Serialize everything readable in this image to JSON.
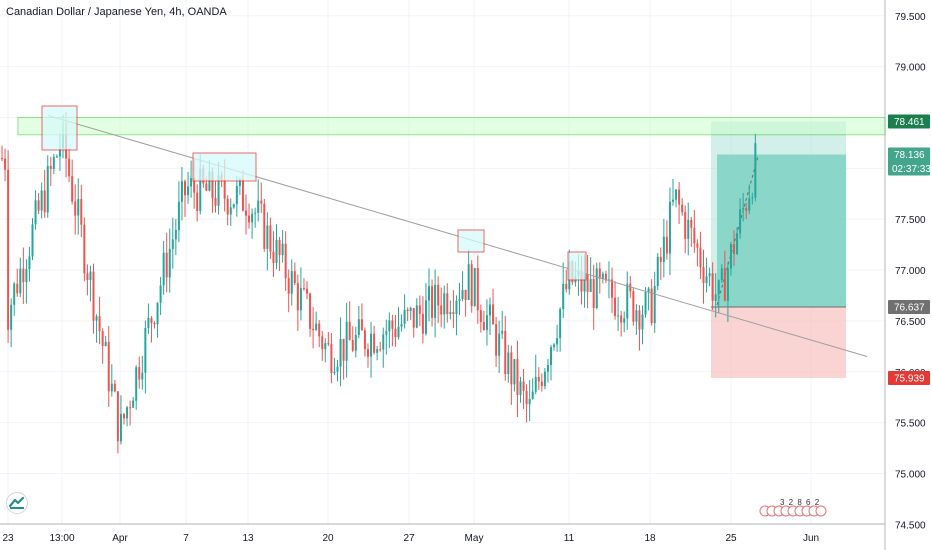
{
  "title": "Canadian Dollar / Japanese Yen, 4h, OANDA",
  "icons": {
    "logo": "tradingview-logo-icon"
  },
  "colors": {
    "background": "#ffffff",
    "grid": "#f0f3fa",
    "up": "#26a69a",
    "down": "#ef5350",
    "trendline": "#9e9e9e",
    "resistance_zone_fill": "#ccffcc",
    "resistance_zone_stroke": "#33cc33",
    "box_fill": "#d6fafa",
    "box_stroke": "#e53935",
    "profit_fill": "#7ed2c4",
    "loss_fill": "#f8c4c4",
    "resistance_label": "#1b7e4f",
    "price_label": "#43a58c",
    "entry_label": "#707070",
    "stop_label": "#e53935"
  },
  "chart_data": {
    "type": "candlestick",
    "y_axis": {
      "ticks": [
        "79.500",
        "79.000",
        "78.500",
        "78.000",
        "77.500",
        "77.000",
        "76.500",
        "76.000",
        "75.500",
        "75.000",
        "74.500"
      ],
      "ylim": [
        74.4,
        79.65
      ]
    },
    "x_axis": {
      "ticks": [
        "23",
        "13:00",
        "Apr",
        "7",
        "13",
        "20",
        "27",
        "May",
        "11",
        "18",
        "25",
        "Jun"
      ]
    },
    "price_labels": {
      "resistance": "78.461",
      "current": "78.136",
      "countdown": "02:37:33",
      "entry": "76.637",
      "stop": "75.939"
    },
    "levels": {
      "zone_top": 78.5,
      "zone_bottom": 78.33,
      "target": 78.461,
      "current": 78.136,
      "entry": 76.637,
      "stop": 75.939
    },
    "trendline": {
      "start": {
        "x": "13:00",
        "y": 78.52
      },
      "end": {
        "x": "Jun",
        "y": 76.15
      }
    },
    "path_anchors": [
      {
        "x": "23",
        "y": 76.6
      },
      {
        "x": "13:00",
        "y": 78.3
      },
      {
        "x": "Apr",
        "y": 75.4
      },
      {
        "x": "7",
        "y": 77.8
      },
      {
        "x": "13",
        "y": 77.7
      },
      {
        "x": "20",
        "y": 76.2
      },
      {
        "x": "27",
        "y": 76.5
      },
      {
        "x": "May",
        "y": 76.9
      },
      {
        "x": "May",
        "y": 75.6
      },
      {
        "x": "11",
        "y": 76.9
      },
      {
        "x": "18",
        "y": 76.6
      },
      {
        "x": "18",
        "y": 77.7
      },
      {
        "x": "25",
        "y": 76.7
      },
      {
        "x": "25",
        "y": 78.1
      }
    ],
    "calendar_digits": "3 2 8 6 2"
  }
}
